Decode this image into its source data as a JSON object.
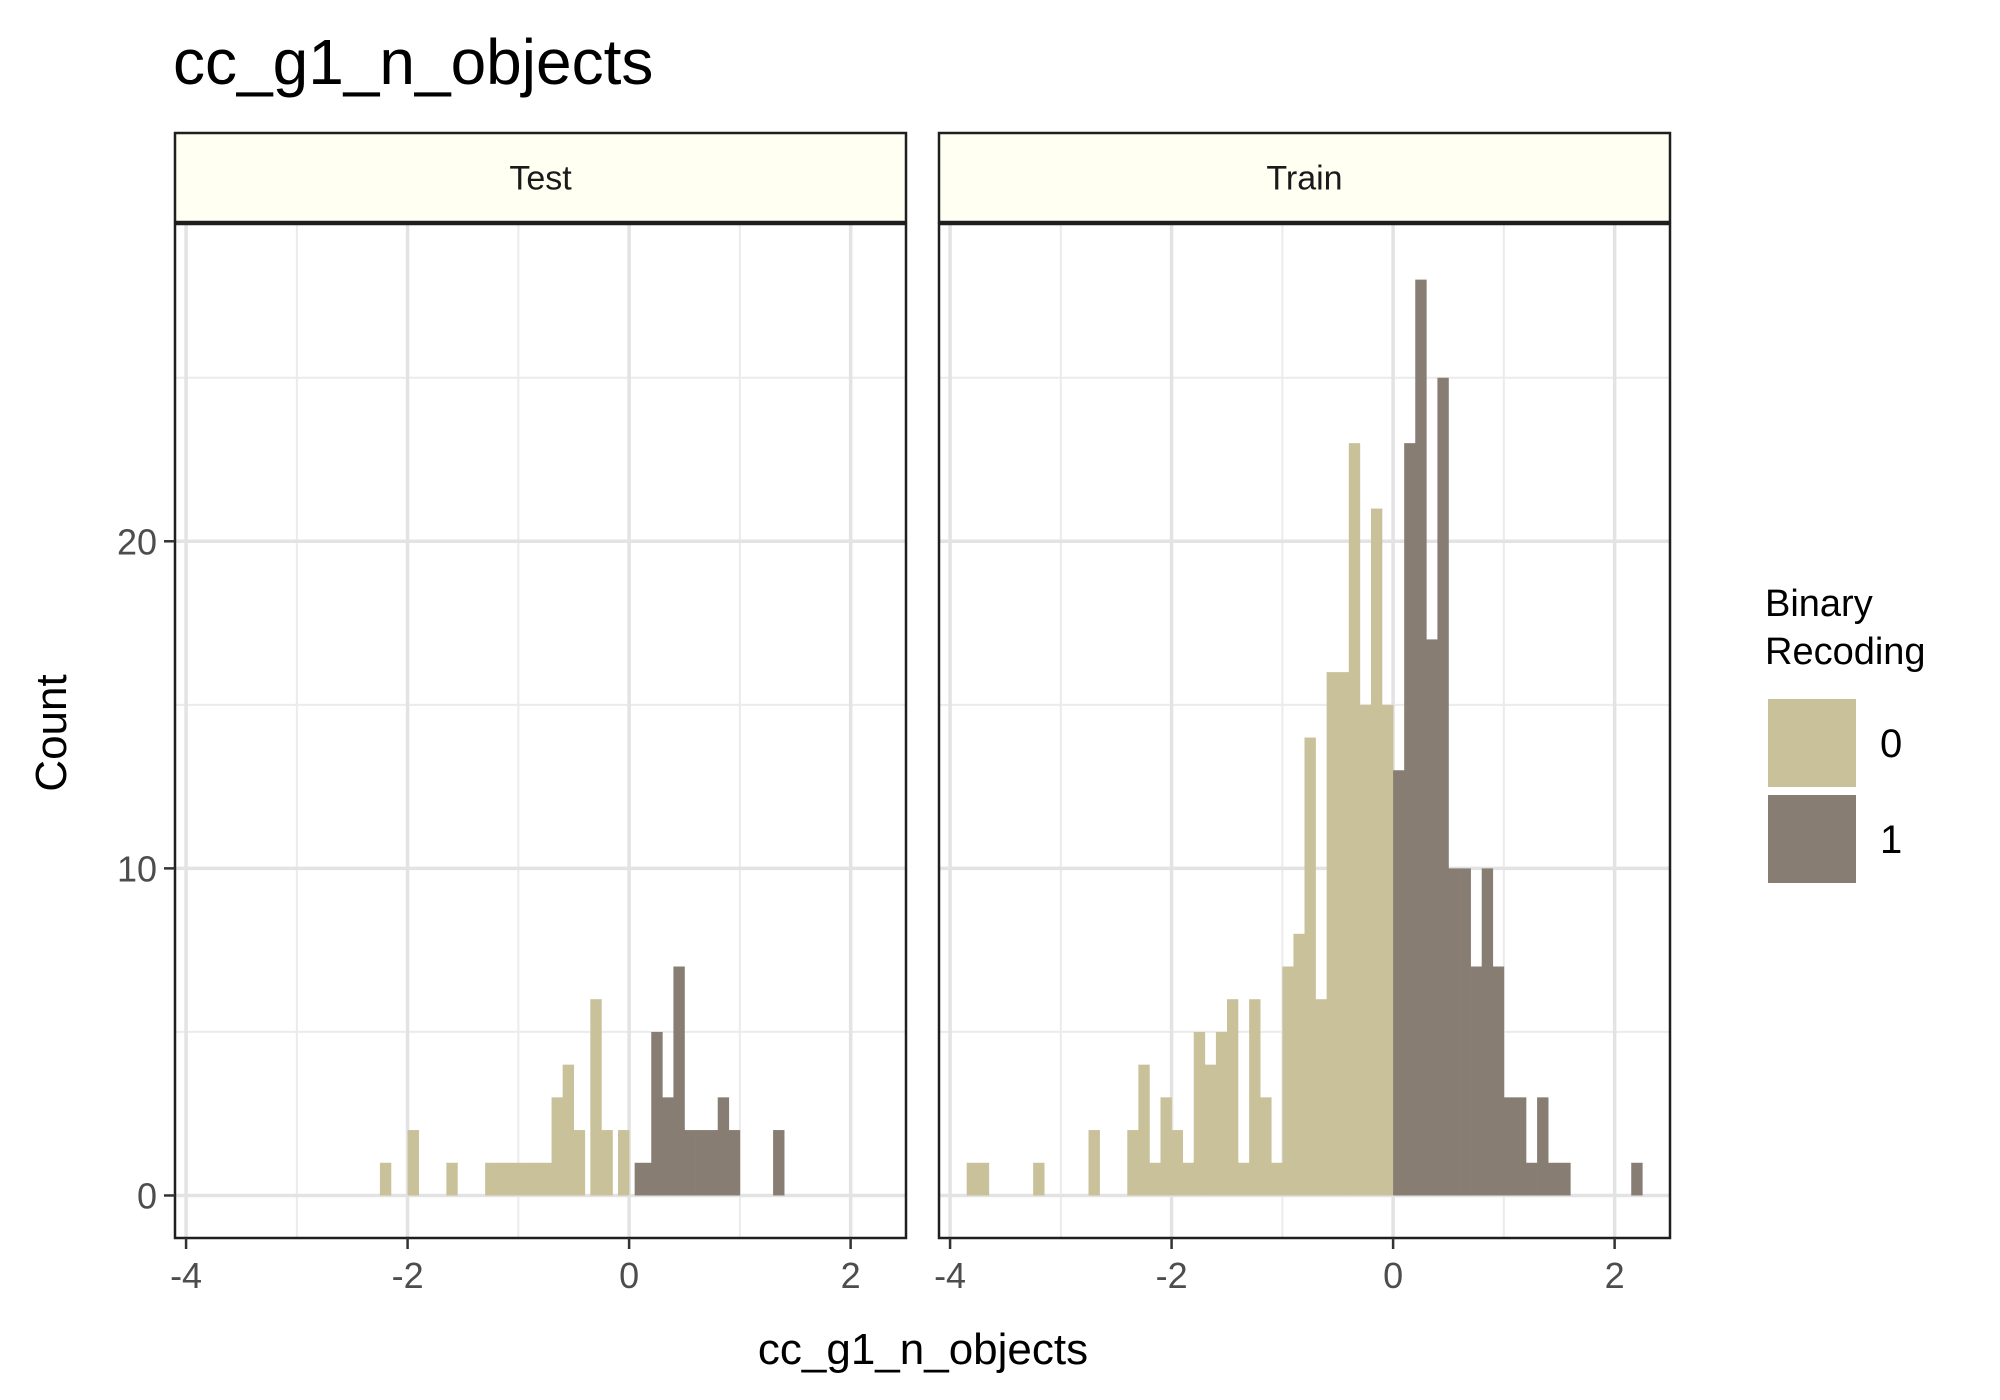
{
  "chart_data": {
    "type": "bar",
    "subtype": "histogram-faceted",
    "title": "cc_g1_n_objects",
    "xlabel": "cc_g1_n_objects",
    "ylabel": "Count",
    "xlim": [
      -4.1,
      2.5
    ],
    "ylim": [
      -1.3,
      29.7
    ],
    "x_ticks": [
      -4,
      -2,
      0,
      2
    ],
    "x_tick_labels": [
      "-4",
      "-2",
      "0",
      "2"
    ],
    "y_ticks": [
      0,
      10,
      20
    ],
    "y_tick_labels": [
      "0",
      "10",
      "20"
    ],
    "grid": true,
    "bin_width": 0.1,
    "legend": {
      "title_lines": [
        "Binary",
        "Recoding"
      ],
      "position": "right",
      "entries": [
        {
          "label": "0",
          "color": "#c9c19a"
        },
        {
          "label": "1",
          "color": "#877d72"
        }
      ]
    },
    "panels": [
      {
        "strip": "Test",
        "series": [
          {
            "name": "0",
            "color": "#c9c19a",
            "bins": [
              [
                -2.2,
                1
              ],
              [
                -1.95,
                2
              ],
              [
                -1.6,
                1
              ],
              [
                -1.25,
                1
              ],
              [
                -1.15,
                1
              ],
              [
                -1.05,
                1
              ],
              [
                -0.95,
                1
              ],
              [
                -0.85,
                1
              ],
              [
                -0.75,
                1
              ],
              [
                -0.65,
                3
              ],
              [
                -0.55,
                4
              ],
              [
                -0.45,
                2
              ],
              [
                -0.3,
                6
              ],
              [
                -0.2,
                2
              ],
              [
                -0.05,
                2
              ]
            ]
          },
          {
            "name": "1",
            "color": "#877d72",
            "bins": [
              [
                0.1,
                1
              ],
              [
                0.2,
                1
              ],
              [
                0.25,
                5
              ],
              [
                0.35,
                3
              ],
              [
                0.45,
                7
              ],
              [
                0.55,
                2
              ],
              [
                0.65,
                2
              ],
              [
                0.75,
                2
              ],
              [
                0.85,
                3
              ],
              [
                0.95,
                2
              ],
              [
                1.35,
                2
              ]
            ]
          }
        ]
      },
      {
        "strip": "Train",
        "series": [
          {
            "name": "0",
            "color": "#c9c19a",
            "bins": [
              [
                -3.8,
                1
              ],
              [
                -3.7,
                1
              ],
              [
                -3.2,
                1
              ],
              [
                -2.7,
                2
              ],
              [
                -2.35,
                2
              ],
              [
                -2.25,
                4
              ],
              [
                -2.15,
                1
              ],
              [
                -2.05,
                3
              ],
              [
                -1.95,
                2
              ],
              [
                -1.85,
                1
              ],
              [
                -1.75,
                5
              ],
              [
                -1.65,
                4
              ],
              [
                -1.55,
                5
              ],
              [
                -1.45,
                6
              ],
              [
                -1.35,
                1
              ],
              [
                -1.25,
                6
              ],
              [
                -1.15,
                3
              ],
              [
                -1.05,
                1
              ],
              [
                -0.95,
                7
              ],
              [
                -0.85,
                8
              ],
              [
                -0.75,
                14
              ],
              [
                -0.65,
                6
              ],
              [
                -0.55,
                16
              ],
              [
                -0.45,
                16
              ],
              [
                -0.35,
                23
              ],
              [
                -0.25,
                15
              ],
              [
                -0.15,
                21
              ],
              [
                -0.05,
                15
              ]
            ]
          },
          {
            "name": "1",
            "color": "#877d72",
            "bins": [
              [
                0.05,
                13
              ],
              [
                0.15,
                23
              ],
              [
                0.25,
                28
              ],
              [
                0.35,
                17
              ],
              [
                0.45,
                25
              ],
              [
                0.55,
                10
              ],
              [
                0.65,
                10
              ],
              [
                0.75,
                7
              ],
              [
                0.85,
                10
              ],
              [
                0.95,
                7
              ],
              [
                1.05,
                3
              ],
              [
                1.15,
                3
              ],
              [
                1.25,
                1
              ],
              [
                1.35,
                3
              ],
              [
                1.45,
                1
              ],
              [
                1.55,
                1
              ],
              [
                2.2,
                1
              ]
            ]
          }
        ]
      }
    ]
  }
}
